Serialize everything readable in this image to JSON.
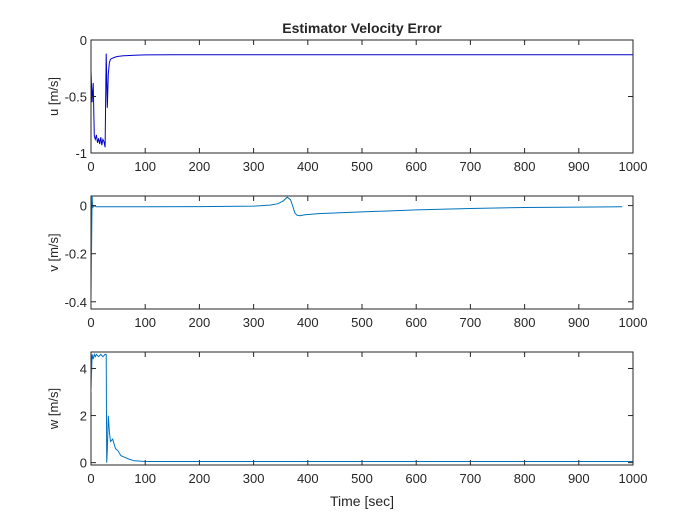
{
  "figure": {
    "title": "Estimator Velocity Error",
    "xlabel": "Time [sec]"
  },
  "chart_data": [
    {
      "type": "line",
      "title": "Estimator Velocity Error",
      "xlabel": "",
      "ylabel": "u [m/s]",
      "xlim": [
        0,
        1000
      ],
      "ylim": [
        -1,
        0
      ],
      "xticks": [
        0,
        100,
        200,
        300,
        400,
        500,
        600,
        700,
        800,
        900,
        1000
      ],
      "yticks": [
        0,
        -0.5,
        -1
      ],
      "ytick_labels": [
        "0",
        "-0.5",
        "-1"
      ],
      "grid": false,
      "color": "#0000cc",
      "series": [
        {
          "x": [
            0,
            2,
            4,
            6,
            8,
            10,
            12,
            14,
            16,
            18,
            20,
            22,
            24,
            26,
            28,
            30,
            32,
            34,
            36,
            40,
            45,
            50,
            60,
            80,
            100,
            150,
            200,
            300,
            400,
            500,
            600,
            700,
            800,
            900,
            1000
          ],
          "y": [
            -0.28,
            -0.55,
            -0.38,
            -0.85,
            -0.88,
            -0.84,
            -0.91,
            -0.87,
            -0.92,
            -0.86,
            -0.93,
            -0.88,
            -0.9,
            -0.95,
            -0.12,
            -0.6,
            -0.3,
            -0.2,
            -0.17,
            -0.16,
            -0.15,
            -0.145,
            -0.14,
            -0.135,
            -0.132,
            -0.131,
            -0.13,
            -0.13,
            -0.13,
            -0.13,
            -0.13,
            -0.13,
            -0.13,
            -0.13,
            -0.13
          ]
        }
      ]
    },
    {
      "type": "line",
      "xlabel": "",
      "ylabel": "v [m/s]",
      "xlim": [
        0,
        1000
      ],
      "ylim": [
        -0.43,
        0.04
      ],
      "xticks": [
        0,
        100,
        200,
        300,
        400,
        500,
        600,
        700,
        800,
        900,
        1000
      ],
      "yticks": [
        0,
        -0.2,
        -0.4
      ],
      "ytick_labels": [
        "0",
        "-0.2",
        "-0.4"
      ],
      "grid": false,
      "color": "#0072bd",
      "series": [
        {
          "x": [
            0,
            1,
            2,
            3,
            5,
            10,
            50,
            100,
            200,
            300,
            330,
            345,
            355,
            362,
            368,
            372,
            376,
            380,
            385,
            395,
            420,
            500,
            600,
            700,
            800,
            900,
            980
          ],
          "y": [
            -0.42,
            -0.2,
            0.04,
            -0.01,
            0.0,
            -0.005,
            -0.005,
            -0.005,
            -0.004,
            -0.002,
            0.002,
            0.008,
            0.02,
            0.035,
            0.025,
            0.0,
            -0.03,
            -0.04,
            -0.042,
            -0.038,
            -0.033,
            -0.026,
            -0.018,
            -0.012,
            -0.008,
            -0.006,
            -0.005
          ]
        }
      ]
    },
    {
      "type": "line",
      "xlabel": "Time [sec]",
      "ylabel": "w [m/s]",
      "xlim": [
        0,
        1000
      ],
      "ylim": [
        -0.1,
        4.7
      ],
      "xticks": [
        0,
        100,
        200,
        300,
        400,
        500,
        600,
        700,
        800,
        900,
        1000
      ],
      "yticks": [
        0,
        2,
        4
      ],
      "ytick_labels": [
        "0",
        "2",
        "4"
      ],
      "grid": false,
      "color": "#0072bd",
      "series": [
        {
          "x": [
            0,
            2,
            4,
            6,
            8,
            10,
            14,
            18,
            22,
            26,
            28,
            29,
            30,
            32,
            34,
            36,
            40,
            45,
            50,
            55,
            60,
            70,
            80,
            100,
            150,
            200,
            300,
            400,
            500,
            600,
            700,
            800,
            900,
            1000
          ],
          "y": [
            3.0,
            4.6,
            4.4,
            4.6,
            4.5,
            4.6,
            4.5,
            4.6,
            4.5,
            4.6,
            4.6,
            0.0,
            0.5,
            2.0,
            1.3,
            0.9,
            1.0,
            0.6,
            0.5,
            0.3,
            0.25,
            0.15,
            0.08,
            0.05,
            0.05,
            0.05,
            0.05,
            0.05,
            0.05,
            0.05,
            0.05,
            0.05,
            0.05,
            0.05
          ]
        }
      ]
    }
  ]
}
